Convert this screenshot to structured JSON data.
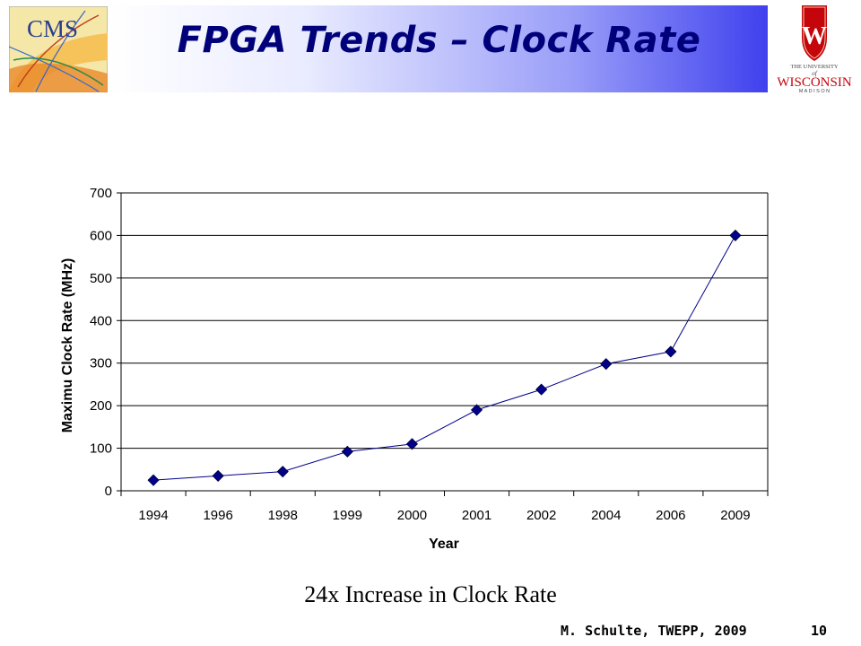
{
  "slide": {
    "title": "FPGA Trends – Clock Rate",
    "caption": "24x Increase in Clock Rate",
    "footer": "M. Schulte, TWEPP, 2009",
    "page_number": "10"
  },
  "logos": {
    "left": {
      "icon": "cms-logo",
      "text": "CMS"
    },
    "right": {
      "icon": "university-of-wisconsin-logo",
      "text": "THE UNIVERSITY of WISCONSIN MADISON",
      "crest_letter": "W",
      "brand_color": "#c5050c"
    }
  },
  "chart_data": {
    "type": "line",
    "title": "",
    "xlabel": "Year",
    "ylabel": "Maximu Clock Rate (MHz)",
    "categories": [
      "1994",
      "1996",
      "1998",
      "1999",
      "2000",
      "2001",
      "2002",
      "2004",
      "2006",
      "2009"
    ],
    "values": [
      25,
      35,
      45,
      92,
      110,
      190,
      238,
      298,
      327,
      600
    ],
    "ylim": [
      0,
      700
    ],
    "yticks": [
      0,
      100,
      200,
      300,
      400,
      500,
      600,
      700
    ],
    "grid": true,
    "marker": "diamond",
    "line_color": "#00008b",
    "marker_color": "#00008b"
  }
}
